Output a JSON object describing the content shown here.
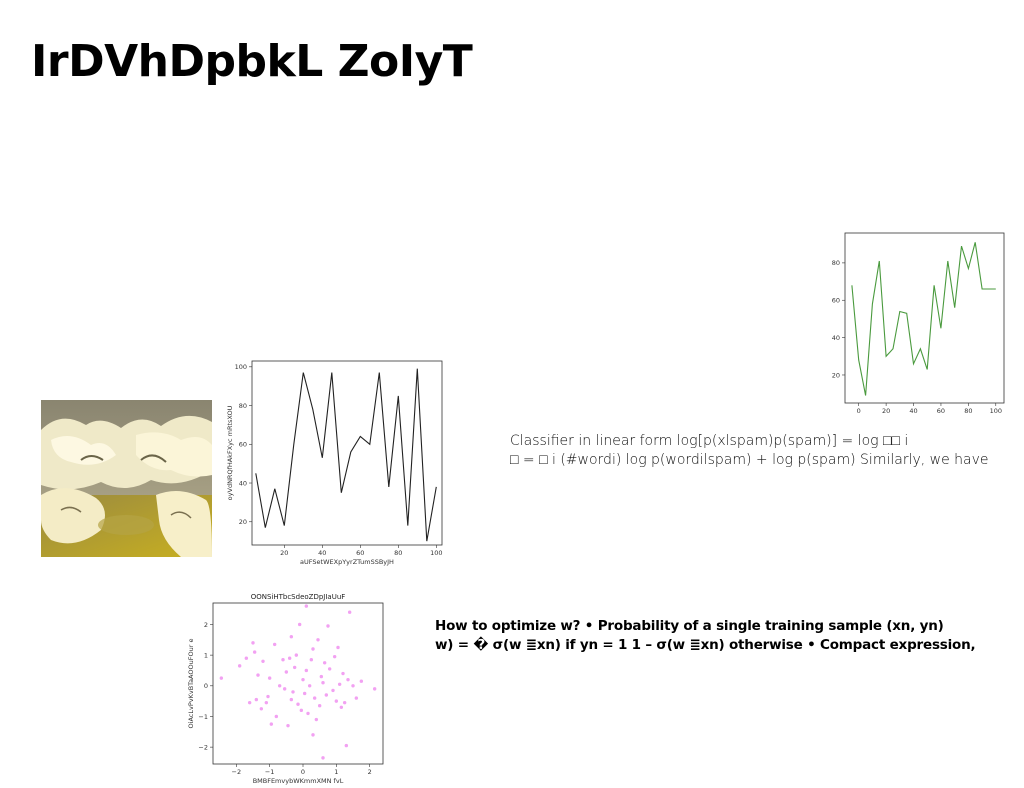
{
  "slide": {
    "title": "IrDVhDpbkL ZoIyT",
    "classifier_lines": [
      "Classifier in linear form log[p(xlspam)p(spam)] = log □□ i",
      "□ = □ i (#wordi) log p(wordilspam) + log p(spam) Similarly, we have"
    ],
    "optimize_lines": [
      "How to optimize w? • Probability of a single training sample (xn, yn)",
      "w) = � σ(w ≣xn) if yn = 1 1 – σ(w ≣xn) otherwise • Compact expression,"
    ],
    "photo_icon": "ice-landscape-photo"
  },
  "chart_data": [
    {
      "type": "line",
      "color": "#222222",
      "title": "",
      "xlabel": "aUFSetWEXpYyrZTumSSByJH",
      "ylabel": "oyVdNRQfHAkFXyc mRtsXOU",
      "xlim": [
        3,
        103
      ],
      "ylim": [
        8,
        103
      ],
      "xticks": [
        20,
        40,
        60,
        80,
        100
      ],
      "yticks": [
        20,
        40,
        60,
        80,
        100
      ],
      "x": [
        5,
        10,
        15,
        20,
        25,
        30,
        35,
        40,
        45,
        50,
        55,
        60,
        65,
        70,
        75,
        80,
        85,
        90,
        95,
        100
      ],
      "y": [
        45,
        17,
        37,
        18,
        60,
        97,
        78,
        53,
        97,
        35,
        56,
        64,
        60,
        97,
        38,
        85,
        18,
        99,
        10,
        38
      ]
    },
    {
      "type": "line",
      "color": "#4a9a3e",
      "title": "",
      "xlabel": "",
      "ylabel": "",
      "xlim": [
        -10,
        106
      ],
      "ylim": [
        5,
        96
      ],
      "xticks": [
        0,
        20,
        40,
        60,
        80,
        100
      ],
      "yticks": [
        20,
        40,
        60,
        80
      ],
      "x": [
        -5,
        0,
        5,
        10,
        15,
        20,
        25,
        30,
        35,
        40,
        45,
        50,
        55,
        60,
        65,
        70,
        75,
        80,
        85,
        90,
        95,
        100
      ],
      "y": [
        68,
        28,
        9,
        58,
        81,
        30,
        34,
        54,
        53,
        26,
        34,
        23,
        68,
        45,
        81,
        56,
        89,
        77,
        91,
        66,
        66,
        66
      ]
    },
    {
      "type": "scatter",
      "color": "#ee82ee",
      "title": "OONSiHTbcSdeoZDpJIaUuF",
      "xlabel": "BMBFEmvybWKmmXMN fvL",
      "ylabel": "OiAcLvPvKvBTaAOOuFOur e",
      "xlim": [
        -2.7,
        2.4
      ],
      "ylim": [
        -2.55,
        2.7
      ],
      "xticks": [
        -2,
        -1,
        0,
        1,
        2
      ],
      "yticks": [
        -2,
        -1,
        0,
        1,
        2
      ],
      "points": [
        [
          -2.45,
          0.25
        ],
        [
          -1.9,
          0.65
        ],
        [
          -1.7,
          0.9
        ],
        [
          -1.6,
          -0.55
        ],
        [
          -1.5,
          1.4
        ],
        [
          -1.45,
          1.1
        ],
        [
          -1.4,
          -0.45
        ],
        [
          -1.35,
          0.35
        ],
        [
          -1.2,
          0.8
        ],
        [
          -1.1,
          -0.55
        ],
        [
          -1.05,
          -0.35
        ],
        [
          -1.0,
          0.25
        ],
        [
          -0.95,
          -1.25
        ],
        [
          -0.85,
          1.35
        ],
        [
          -0.8,
          -1.0
        ],
        [
          -0.7,
          0.0
        ],
        [
          -0.6,
          0.85
        ],
        [
          -0.55,
          -0.1
        ],
        [
          -0.5,
          0.45
        ],
        [
          -0.45,
          -1.3
        ],
        [
          -0.4,
          0.9
        ],
        [
          -0.35,
          -0.45
        ],
        [
          -0.3,
          -0.2
        ],
        [
          -0.25,
          0.6
        ],
        [
          -0.2,
          1.0
        ],
        [
          -0.15,
          -0.6
        ],
        [
          -0.1,
          2.0
        ],
        [
          -0.05,
          -0.8
        ],
        [
          0.0,
          0.2
        ],
        [
          0.05,
          -0.25
        ],
        [
          0.1,
          0.5
        ],
        [
          0.15,
          -0.9
        ],
        [
          0.2,
          0.0
        ],
        [
          0.25,
          0.85
        ],
        [
          0.3,
          1.2
        ],
        [
          0.35,
          -0.4
        ],
        [
          0.4,
          -1.1
        ],
        [
          0.45,
          1.5
        ],
        [
          0.5,
          -0.65
        ],
        [
          0.55,
          0.3
        ],
        [
          0.6,
          0.1
        ],
        [
          0.65,
          0.75
        ],
        [
          0.7,
          -0.3
        ],
        [
          0.75,
          1.95
        ],
        [
          0.8,
          0.55
        ],
        [
          0.9,
          -0.15
        ],
        [
          0.95,
          0.95
        ],
        [
          1.0,
          -0.5
        ],
        [
          1.05,
          1.25
        ],
        [
          1.1,
          0.05
        ],
        [
          1.15,
          -0.7
        ],
        [
          1.2,
          0.4
        ],
        [
          1.25,
          -0.55
        ],
        [
          1.3,
          -1.95
        ],
        [
          1.35,
          0.2
        ],
        [
          1.4,
          2.4
        ],
        [
          1.5,
          0.0
        ],
        [
          1.6,
          -0.4
        ],
        [
          1.75,
          0.15
        ],
        [
          2.15,
          -0.1
        ],
        [
          0.1,
          2.6
        ],
        [
          -0.35,
          1.6
        ],
        [
          0.6,
          -2.35
        ],
        [
          -1.25,
          -0.75
        ],
        [
          0.3,
          -1.6
        ]
      ]
    }
  ]
}
